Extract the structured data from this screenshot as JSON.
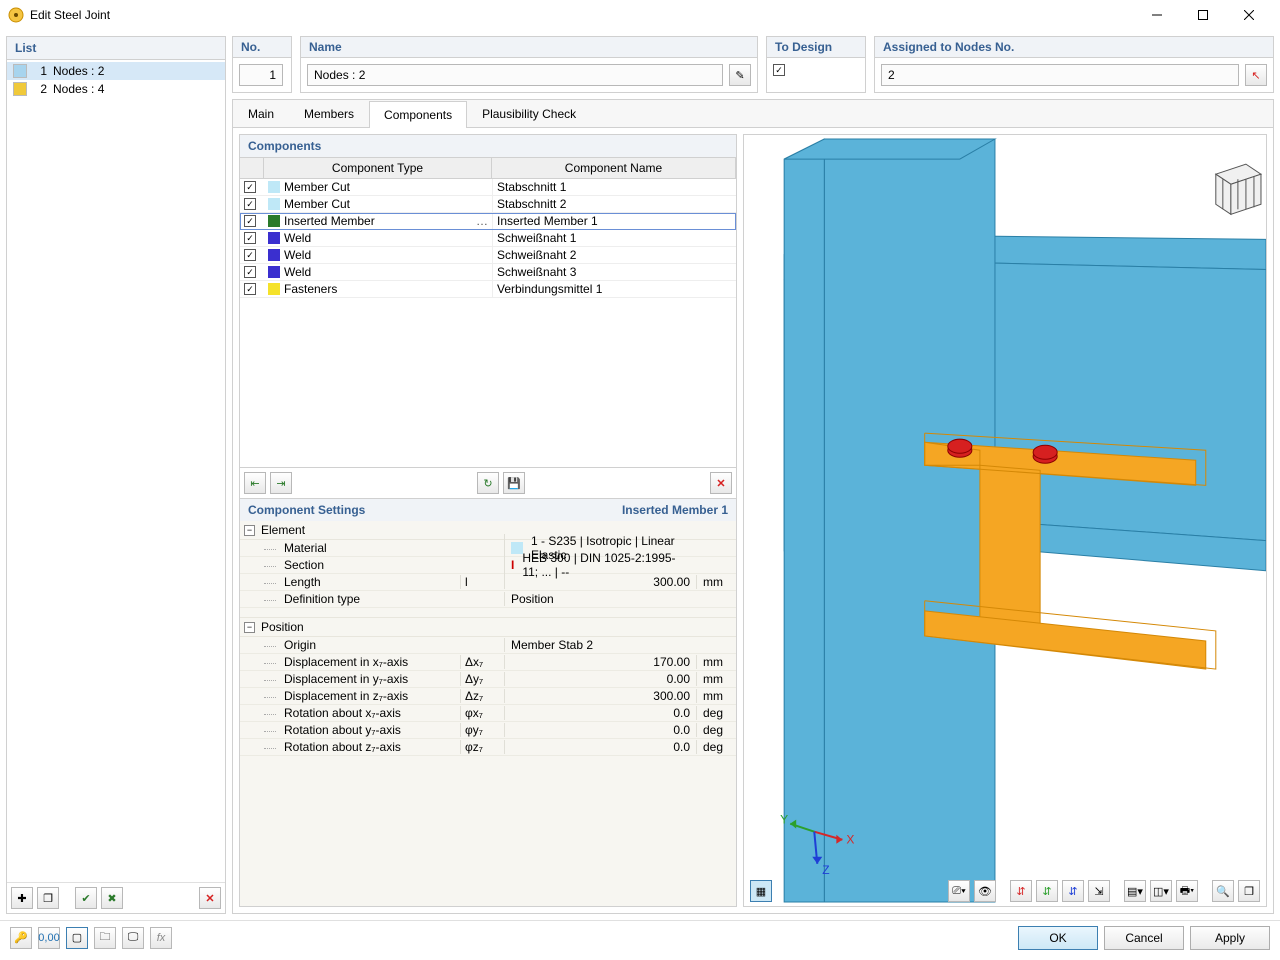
{
  "window": {
    "title": "Edit Steel Joint"
  },
  "sidebar": {
    "header": "List",
    "items": [
      {
        "num": "1",
        "label": "Nodes : 2",
        "color": "#a7d4ee",
        "selected": true
      },
      {
        "num": "2",
        "label": "Nodes : 4",
        "color": "#f0c93a",
        "selected": false
      }
    ]
  },
  "fields": {
    "no_label": "No.",
    "no_value": "1",
    "name_label": "Name",
    "name_value": "Nodes : 2",
    "todesign_label": "To Design",
    "assigned_label": "Assigned to Nodes No.",
    "assigned_value": "2"
  },
  "tabs": [
    "Main",
    "Members",
    "Components",
    "Plausibility Check"
  ],
  "active_tab": 2,
  "components": {
    "title": "Components",
    "col_type": "Component Type",
    "col_name": "Component Name",
    "rows": [
      {
        "color": "#bfe8f7",
        "type": "Member Cut",
        "name": "Stabschnitt 1",
        "sel": false
      },
      {
        "color": "#bfe8f7",
        "type": "Member Cut",
        "name": "Stabschnitt 2",
        "sel": false
      },
      {
        "color": "#2a7a2a",
        "type": "Inserted Member",
        "name": "Inserted Member 1",
        "sel": true
      },
      {
        "color": "#3a2fcf",
        "type": "Weld",
        "name": "Schweißnaht 1",
        "sel": false
      },
      {
        "color": "#3a2fcf",
        "type": "Weld",
        "name": "Schweißnaht 2",
        "sel": false
      },
      {
        "color": "#3a2fcf",
        "type": "Weld",
        "name": "Schweißnaht 3",
        "sel": false
      },
      {
        "color": "#f5e22a",
        "type": "Fasteners",
        "name": "Verbindungsmittel 1",
        "sel": false
      }
    ]
  },
  "settings": {
    "title": "Component Settings",
    "current": "Inserted Member 1",
    "element_label": "Element",
    "position_label": "Position",
    "element": [
      {
        "name": "Material",
        "sym": "",
        "val": "1 - S235 | Isotropic | Linear Elastic",
        "unit": "",
        "swatch": "#bfe8f7"
      },
      {
        "name": "Section",
        "sym": "",
        "val": "HEB 300 | DIN 1025-2:1995-11; ... | --",
        "unit": "",
        "icon": "I"
      },
      {
        "name": "Length",
        "sym": "l",
        "val": "300.00",
        "unit": "mm",
        "right": true
      },
      {
        "name": "Definition type",
        "sym": "",
        "val": "Position",
        "unit": ""
      }
    ],
    "position": [
      {
        "name": "Origin",
        "sym": "",
        "val": "Member             Stab 2",
        "unit": ""
      },
      {
        "name": "Displacement in x₇-axis",
        "sym": "Δx₇",
        "val": "170.00",
        "unit": "mm",
        "right": true
      },
      {
        "name": "Displacement in y₇-axis",
        "sym": "Δy₇",
        "val": "0.00",
        "unit": "mm",
        "right": true
      },
      {
        "name": "Displacement in z₇-axis",
        "sym": "Δz₇",
        "val": "300.00",
        "unit": "mm",
        "right": true
      },
      {
        "name": "Rotation about x₇-axis",
        "sym": "φx₇",
        "val": "0.0",
        "unit": "deg",
        "right": true
      },
      {
        "name": "Rotation about y₇-axis",
        "sym": "φy₇",
        "val": "0.0",
        "unit": "deg",
        "right": true
      },
      {
        "name": "Rotation about z₇-axis",
        "sym": "φz₇",
        "val": "0.0",
        "unit": "deg",
        "right": true
      }
    ]
  },
  "viewer": {
    "axis": {
      "x_color": "#d62728",
      "y_color": "#2ca02c",
      "z_color": "#1f3fd6"
    },
    "beam_color": "#5bb3d9",
    "beam_stroke": "#2a7fa6",
    "insert_color": "#f5a623",
    "insert_stroke": "#d48806",
    "bolt_color": "#d62020"
  },
  "buttons": {
    "ok": "OK",
    "cancel": "Cancel",
    "apply": "Apply"
  }
}
